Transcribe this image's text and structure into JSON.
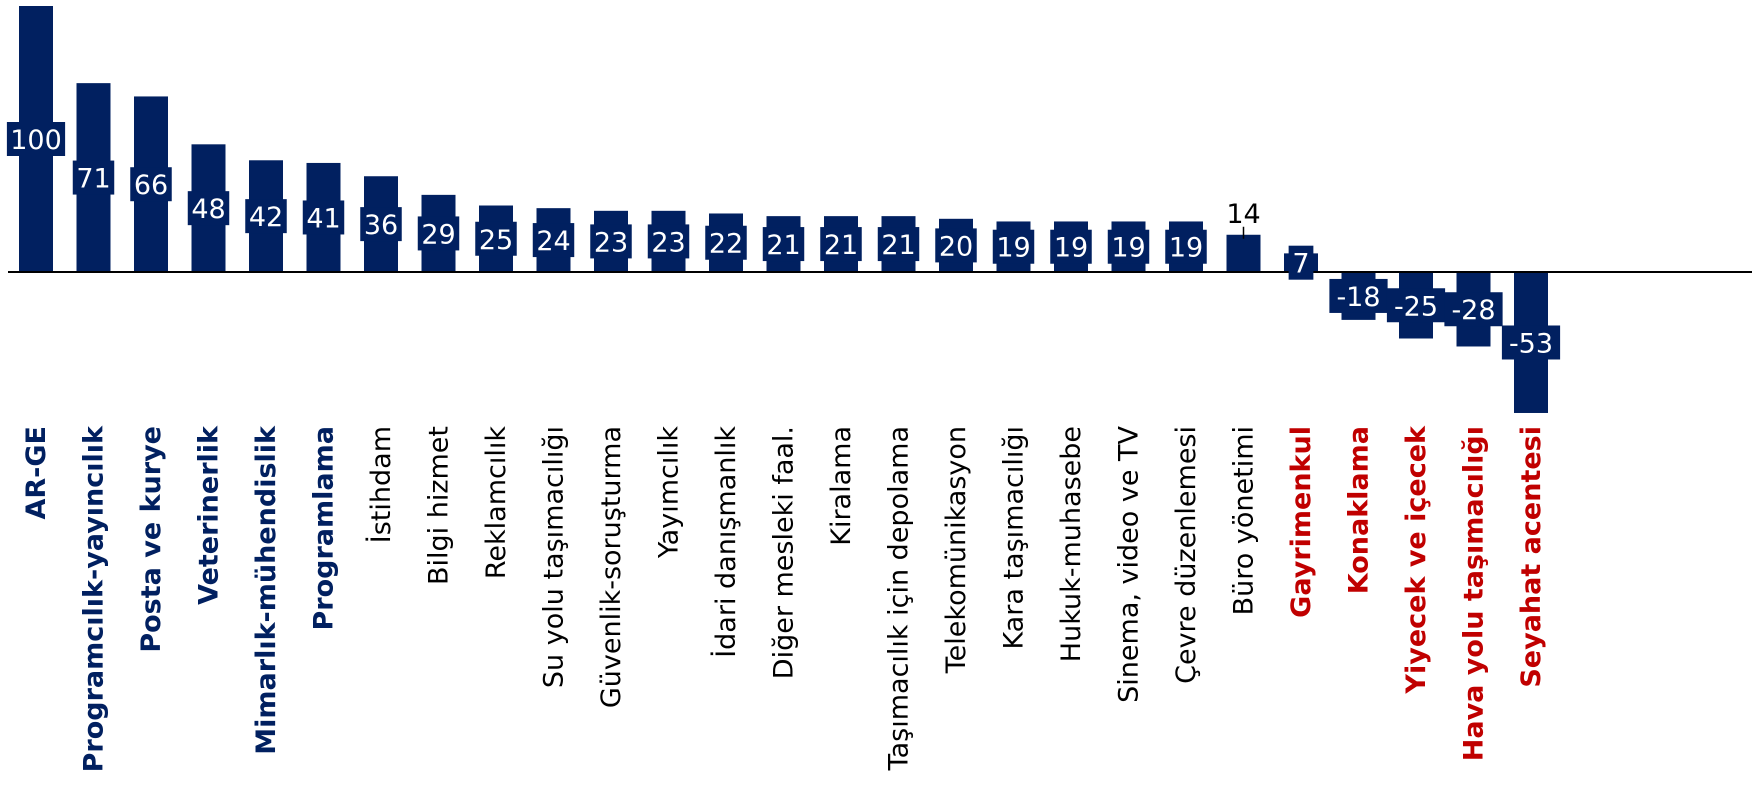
{
  "chart_data": {
    "type": "bar",
    "title": "",
    "xlabel": "",
    "ylabel": "",
    "ylim": [
      -53,
      100
    ],
    "grid": false,
    "legend": "none",
    "colors": {
      "bar": "#012060",
      "label_highlight_positive": "#012060",
      "label_highlight_negative": "#C00000",
      "label_normal": "#000000",
      "axis": "#000000"
    },
    "categories": [
      "AR-GE",
      "Programcılık-yayıncılık",
      "Posta ve kurye",
      "Veterinerlik",
      "Mimarlık-mühendislik",
      "Programlama",
      "İstihdam",
      "Bilgi hizmet",
      "Reklamcılık",
      "Su yolu taşımacılığı",
      "Güvenlik-soruşturma",
      "Yayımcılık",
      "İdari danışmanlık",
      "Diğer mesleki faal.",
      "Kiralama",
      "Taşımacılık için depolama",
      "Telekomünikasyon",
      "Kara taşımacılığı",
      "Hukuk-muhasebe",
      "Sinema, video ve TV",
      "Çevre düzenlemesi",
      "Büro yönetimi",
      "Gayrimenkul",
      "Konaklama",
      "Yiyecek ve içecek",
      "Hava yolu taşımacılığı",
      "Seyahat acentesi"
    ],
    "values": [
      100,
      71,
      66,
      48,
      42,
      41,
      36,
      29,
      25,
      24,
      23,
      23,
      22,
      21,
      21,
      21,
      20,
      19,
      19,
      19,
      19,
      14,
      7,
      -18,
      -25,
      -28,
      -53
    ],
    "value_labels": [
      "100",
      "71",
      "66",
      "48",
      "42",
      "41",
      "36",
      "29",
      "25",
      "24",
      "23",
      "23",
      "22",
      "21",
      "21",
      "21",
      "20",
      "19",
      "19",
      "19",
      "19",
      "14",
      "7",
      "-18",
      "-25",
      "-28",
      "-53"
    ],
    "label_styles": [
      "pos",
      "pos",
      "pos",
      "pos",
      "pos",
      "pos",
      "normal",
      "normal",
      "normal",
      "normal",
      "normal",
      "normal",
      "normal",
      "normal",
      "normal",
      "normal",
      "normal",
      "normal",
      "normal",
      "normal",
      "normal",
      "normal",
      "neg",
      "neg",
      "neg",
      "neg",
      "neg"
    ]
  }
}
